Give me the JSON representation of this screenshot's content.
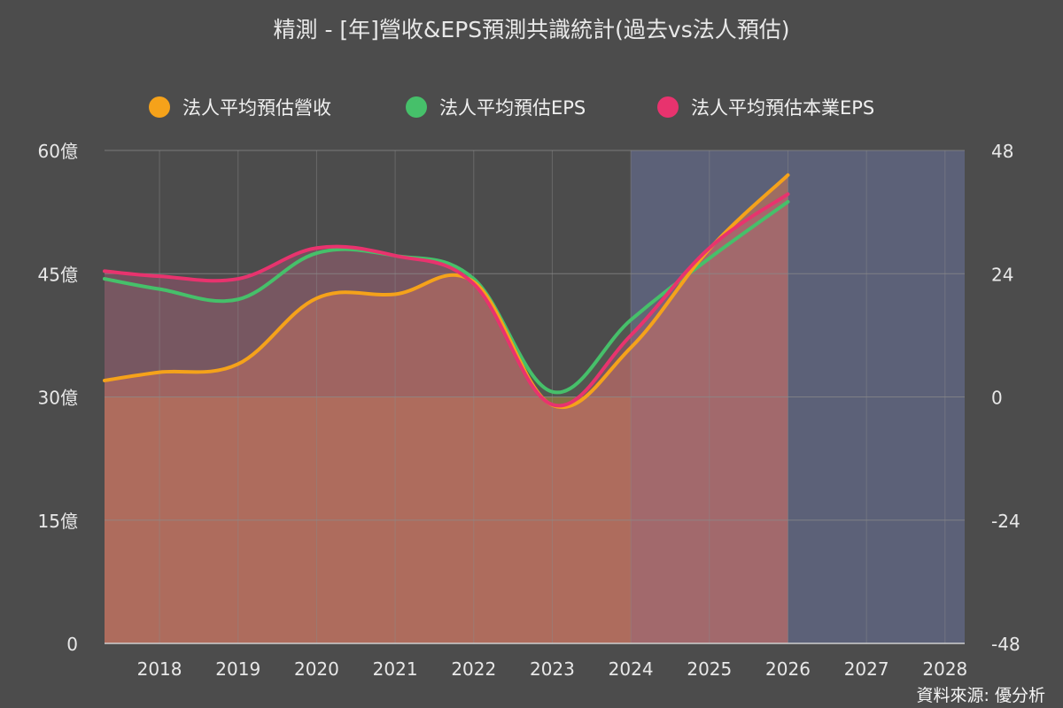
{
  "title": "精測 - [年]營收&EPS預測共識統計(過去vs法人預估)",
  "source": "資料來源: 優分析",
  "colors": {
    "background": "#4c4c4c",
    "revenue": "#f5a21a",
    "eps": "#46c06a",
    "core_eps": "#e8336e",
    "forecast_band": "#5c6178",
    "history_fill": "#8a6d3b",
    "grid": "#8a8a8a",
    "axis_text": "#e8e8e8"
  },
  "chart_data": {
    "type": "line",
    "title": "精測 - [年]營收&EPS預測共識統計(過去vs法人預估)",
    "x_range": [
      2017.3,
      2028.25
    ],
    "x_ticks": [
      "2018",
      "2019",
      "2020",
      "2021",
      "2022",
      "2023",
      "2024",
      "2025",
      "2026",
      "2027",
      "2028"
    ],
    "y_left": {
      "range": [
        0,
        60
      ],
      "ticks": [
        0,
        15,
        30,
        45,
        60
      ],
      "tick_labels": [
        "0",
        "15億",
        "30億",
        "45億",
        "60億"
      ]
    },
    "y_right": {
      "range": [
        -48,
        48
      ],
      "ticks": [
        -48,
        -24,
        0,
        24,
        48
      ],
      "tick_labels": [
        "-48",
        "-24",
        "0",
        "24",
        "48"
      ]
    },
    "forecast_region": [
      2024,
      2028.25
    ],
    "history_bar": {
      "x_range": [
        2017.3,
        2024
      ],
      "value": 30,
      "axis": "left"
    },
    "grid": true,
    "legend_position": "top",
    "series": [
      {
        "name": "法人平均預估營收",
        "key": "revenue",
        "axis": "left",
        "x": [
          2017.3,
          2018,
          2019,
          2020,
          2021,
          2022,
          2023,
          2024,
          2025,
          2026
        ],
        "y": [
          32,
          33,
          34,
          42,
          42.5,
          44,
          29,
          36,
          48,
          57
        ]
      },
      {
        "name": "法人平均預估EPS",
        "key": "eps",
        "axis": "right",
        "x": [
          2017.3,
          2018,
          2019,
          2020,
          2021,
          2022,
          2023,
          2024,
          2025,
          2026
        ],
        "y": [
          23,
          21,
          19,
          28,
          27.5,
          23,
          1,
          15,
          27,
          38
        ]
      },
      {
        "name": "法人平均預估本業EPS",
        "key": "core_eps",
        "axis": "right",
        "x": [
          2017.3,
          2018,
          2019,
          2020,
          2021,
          2022,
          2023,
          2024,
          2025,
          2026
        ],
        "y": [
          24.5,
          23.5,
          23,
          29,
          27.5,
          22,
          -1.5,
          12,
          29,
          39.5
        ]
      }
    ]
  }
}
